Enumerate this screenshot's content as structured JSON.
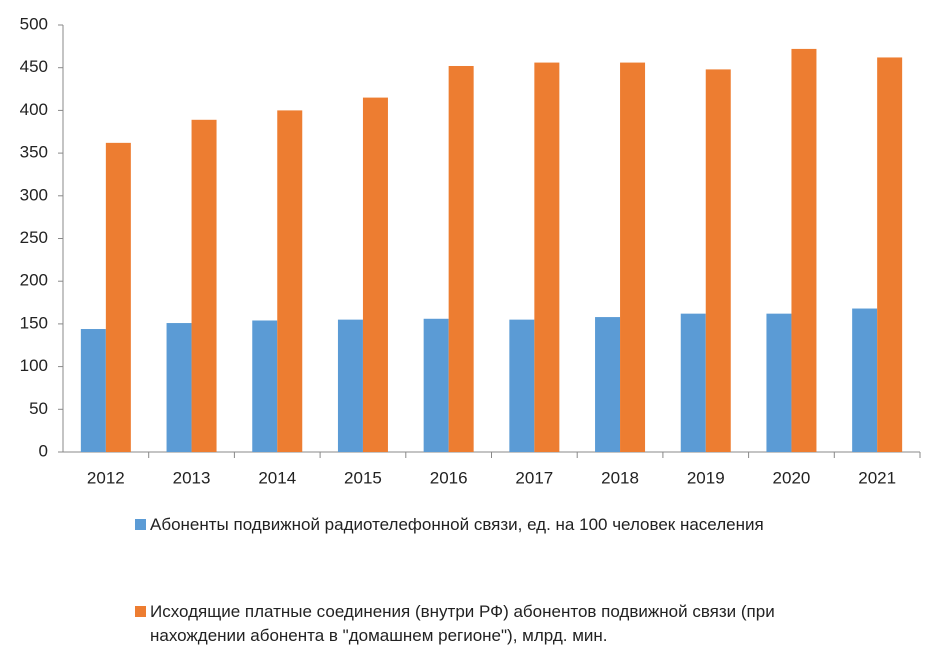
{
  "chart_data": {
    "type": "bar",
    "categories": [
      "2012",
      "2013",
      "2014",
      "2015",
      "2016",
      "2017",
      "2018",
      "2019",
      "2020",
      "2021"
    ],
    "series": [
      {
        "name": "Абоненты подвижной радиотелефонной связи, ед. на 100 человек населения",
        "color": "#5b9bd5",
        "values": [
          144,
          151,
          154,
          155,
          156,
          155,
          158,
          162,
          162,
          168
        ]
      },
      {
        "name": "Исходящие платные соединения (внутри РФ) абонентов подвижной связи (при нахождении абонента в \"домашнем регионе\"), млрд. мин.",
        "color": "#ed7d31",
        "values": [
          362,
          389,
          400,
          415,
          452,
          456,
          456,
          448,
          472,
          462
        ]
      }
    ],
    "ylim": [
      0,
      500
    ],
    "yticks": [
      0,
      50,
      100,
      150,
      200,
      250,
      300,
      350,
      400,
      450,
      500
    ],
    "grid": false,
    "legend": "bottom"
  }
}
